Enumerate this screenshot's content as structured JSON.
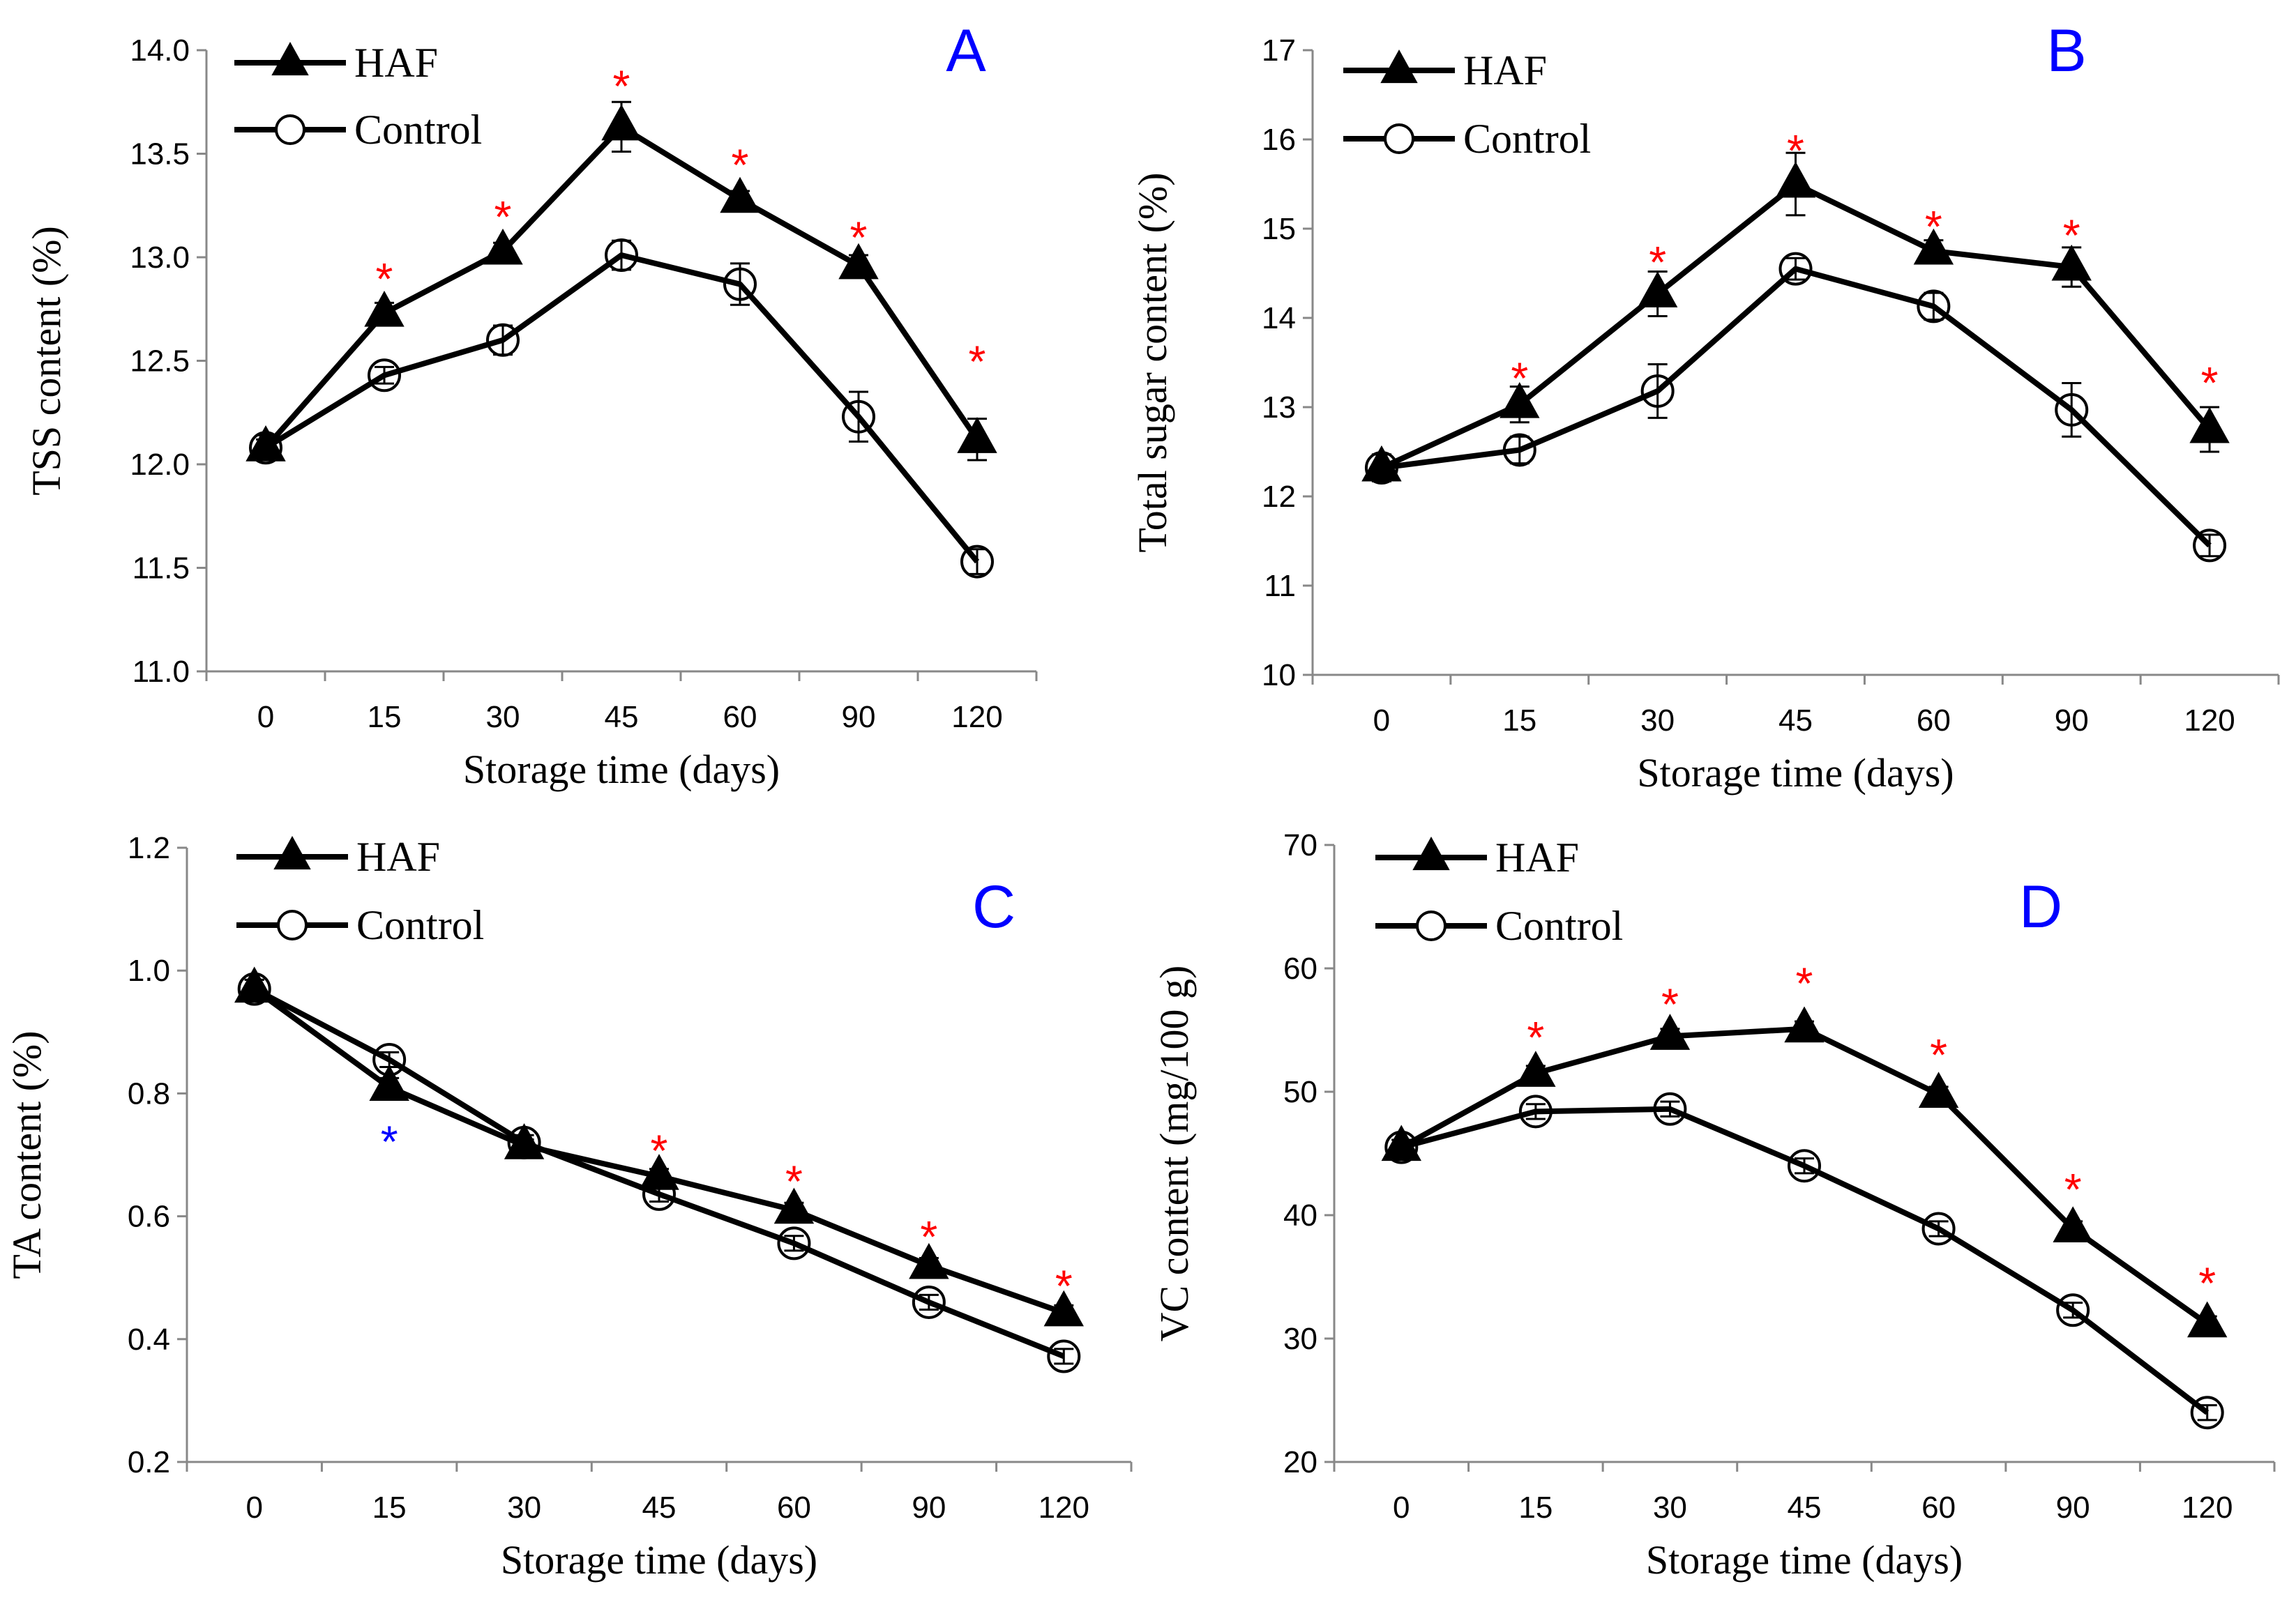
{
  "colors": {
    "series": "#000000",
    "panel_letter": "#0000ff",
    "star_red": "#ff0000",
    "star_blue": "#0000ff"
  },
  "chart_data": [
    {
      "panel": "A",
      "type": "line",
      "xlabel": "Storage time (days)",
      "ylabel": "TSS content (%)",
      "categories": [
        "0",
        "15",
        "30",
        "45",
        "60",
        "90",
        "120"
      ],
      "ylim": [
        11.0,
        14.0
      ],
      "yticks": [
        "11.0",
        "11.5",
        "12.0",
        "12.5",
        "13.0",
        "13.5",
        "14.0"
      ],
      "legend": "top-left",
      "series": [
        {
          "name": "HAF",
          "marker": "filled-triangle",
          "values": [
            12.08,
            12.73,
            13.03,
            13.63,
            13.28,
            12.96,
            12.12
          ],
          "errors": [
            0.04,
            0.05,
            0.04,
            0.12,
            0.04,
            0.05,
            0.1
          ]
        },
        {
          "name": "Control",
          "marker": "open-circle",
          "values": [
            12.08,
            12.43,
            12.6,
            13.01,
            12.87,
            12.23,
            11.53
          ],
          "errors": [
            0.06,
            0.04,
            0.07,
            0.07,
            0.1,
            0.12,
            0.06
          ]
        }
      ],
      "significance": [
        {
          "index": 1,
          "label": "*",
          "color": "red",
          "y": 12.95
        },
        {
          "index": 2,
          "label": "*",
          "color": "red",
          "y": 13.25
        },
        {
          "index": 3,
          "label": "*",
          "color": "red",
          "y": 13.88
        },
        {
          "index": 4,
          "label": "*",
          "color": "red",
          "y": 13.5
        },
        {
          "index": 5,
          "label": "*",
          "color": "red",
          "y": 13.15
        },
        {
          "index": 6,
          "label": "*",
          "color": "red",
          "y": 12.55
        }
      ]
    },
    {
      "panel": "B",
      "type": "line",
      "xlabel": "Storage time (days)",
      "ylabel": "Total sugar content (%)",
      "categories": [
        "0",
        "15",
        "30",
        "45",
        "60",
        "90",
        "120"
      ],
      "ylim": [
        10,
        17
      ],
      "yticks": [
        "10",
        "11",
        "12",
        "13",
        "14",
        "15",
        "16",
        "17"
      ],
      "legend": "top-left",
      "series": [
        {
          "name": "HAF",
          "marker": "filled-triangle",
          "values": [
            12.32,
            13.03,
            14.27,
            15.5,
            14.75,
            14.57,
            12.75
          ],
          "errors": [
            0.15,
            0.2,
            0.25,
            0.35,
            0.12,
            0.22,
            0.25
          ]
        },
        {
          "name": "Control",
          "marker": "open-circle",
          "values": [
            12.32,
            12.52,
            13.18,
            14.55,
            14.13,
            12.97,
            11.45
          ],
          "errors": [
            0.15,
            0.15,
            0.3,
            0.12,
            0.15,
            0.3,
            0.12
          ]
        }
      ],
      "significance": [
        {
          "index": 1,
          "label": "*",
          "color": "red",
          "y": 13.45
        },
        {
          "index": 2,
          "label": "*",
          "color": "red",
          "y": 14.75
        },
        {
          "index": 3,
          "label": "*",
          "color": "red",
          "y": 16.0
        },
        {
          "index": 4,
          "label": "*",
          "color": "red",
          "y": 15.15
        },
        {
          "index": 5,
          "label": "*",
          "color": "red",
          "y": 15.05
        },
        {
          "index": 6,
          "label": "*",
          "color": "red",
          "y": 13.4
        }
      ]
    },
    {
      "panel": "C",
      "type": "line",
      "xlabel": "Storage time (days)",
      "ylabel": "TA content (%)",
      "categories": [
        "0",
        "15",
        "30",
        "45",
        "60",
        "90",
        "120"
      ],
      "ylim": [
        0.2,
        1.2
      ],
      "yticks": [
        "0.2",
        "0.4",
        "0.6",
        "0.8",
        "1.0",
        "1.2"
      ],
      "legend": "top-left",
      "series": [
        {
          "name": "HAF",
          "marker": "filled-triangle",
          "values": [
            0.97,
            0.81,
            0.715,
            0.665,
            0.61,
            0.52,
            0.443
          ],
          "errors": [
            0.015,
            0.015,
            0.01,
            0.012,
            0.012,
            0.012,
            0.012
          ]
        },
        {
          "name": "Control",
          "marker": "open-circle",
          "values": [
            0.97,
            0.855,
            0.72,
            0.636,
            0.556,
            0.46,
            0.372
          ],
          "errors": [
            0.015,
            0.012,
            0.012,
            0.012,
            0.012,
            0.012,
            0.012
          ]
        }
      ],
      "significance": [
        {
          "index": 1,
          "label": "*",
          "color": "blue",
          "y": 0.74
        },
        {
          "index": 3,
          "label": "*",
          "color": "red",
          "y": 0.725
        },
        {
          "index": 4,
          "label": "*",
          "color": "red",
          "y": 0.675
        },
        {
          "index": 5,
          "label": "*",
          "color": "red",
          "y": 0.585
        },
        {
          "index": 6,
          "label": "*",
          "color": "red",
          "y": 0.505
        }
      ]
    },
    {
      "panel": "D",
      "type": "line",
      "xlabel": "Storage time (days)",
      "ylabel": "VC content (mg/100 g)",
      "categories": [
        "0",
        "15",
        "30",
        "45",
        "60",
        "90",
        "120"
      ],
      "ylim": [
        20,
        70
      ],
      "yticks": [
        "20",
        "30",
        "40",
        "50",
        "60",
        "70"
      ],
      "legend": "top-left",
      "series": [
        {
          "name": "HAF",
          "marker": "filled-triangle",
          "values": [
            45.5,
            51.5,
            54.5,
            55.1,
            49.8,
            38.9,
            31.2
          ],
          "errors": [
            0.6,
            0.6,
            0.6,
            0.6,
            0.6,
            0.6,
            0.6
          ]
        },
        {
          "name": "Control",
          "marker": "open-circle",
          "values": [
            45.5,
            48.4,
            48.6,
            44.0,
            38.9,
            32.3,
            24.0
          ],
          "errors": [
            0.6,
            0.6,
            0.6,
            0.6,
            0.6,
            0.6,
            0.6
          ]
        }
      ],
      "significance": [
        {
          "index": 1,
          "label": "*",
          "color": "red",
          "y": 55.3
        },
        {
          "index": 2,
          "label": "*",
          "color": "red",
          "y": 58.0
        },
        {
          "index": 3,
          "label": "*",
          "color": "red",
          "y": 59.7
        },
        {
          "index": 4,
          "label": "*",
          "color": "red",
          "y": 53.9
        },
        {
          "index": 5,
          "label": "*",
          "color": "red",
          "y": 43.0
        },
        {
          "index": 6,
          "label": "*",
          "color": "red",
          "y": 35.4
        }
      ]
    }
  ]
}
